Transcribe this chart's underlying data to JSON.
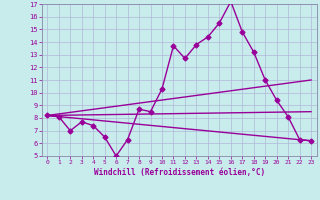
{
  "xlabel": "Windchill (Refroidissement éolien,°C)",
  "ylabel": "",
  "background_color": "#c8ecec",
  "grid_color": "#b0b8d8",
  "line_color": "#990099",
  "spine_color": "#8888aa",
  "xlim": [
    -0.5,
    23.5
  ],
  "ylim": [
    5,
    17
  ],
  "xticks": [
    0,
    1,
    2,
    3,
    4,
    5,
    6,
    7,
    8,
    9,
    10,
    11,
    12,
    13,
    14,
    15,
    16,
    17,
    18,
    19,
    20,
    21,
    22,
    23
  ],
  "yticks": [
    5,
    6,
    7,
    8,
    9,
    10,
    11,
    12,
    13,
    14,
    15,
    16,
    17
  ],
  "line1_x": [
    0,
    1,
    2,
    3,
    4,
    5,
    6,
    7,
    8,
    9,
    10,
    11,
    12,
    13,
    14,
    15,
    16,
    17,
    18,
    19,
    20,
    21,
    22,
    23
  ],
  "line1_y": [
    8.2,
    8.1,
    7.0,
    7.7,
    7.4,
    6.5,
    5.0,
    6.3,
    8.7,
    8.5,
    10.3,
    13.7,
    12.7,
    13.8,
    14.4,
    15.5,
    17.2,
    14.8,
    13.2,
    11.0,
    9.4,
    8.1,
    6.3,
    6.2
  ],
  "line2_x": [
    0,
    23
  ],
  "line2_y": [
    8.2,
    11.0
  ],
  "line3_x": [
    0,
    23
  ],
  "line3_y": [
    8.2,
    8.5
  ],
  "line4_x": [
    0,
    23
  ],
  "line4_y": [
    8.2,
    6.2
  ],
  "marker": "D",
  "markersize": 2.5,
  "linewidth": 1.0
}
